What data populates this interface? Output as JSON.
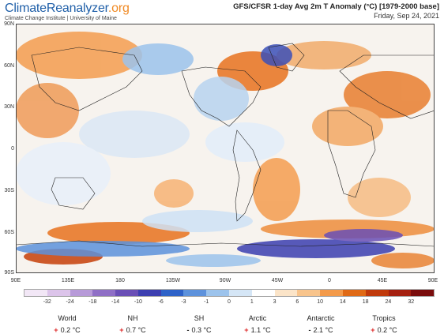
{
  "header": {
    "brand_main": "ClimateReanalyzer",
    "brand_ext": ".org",
    "brand_sub": "Climate Change Institute | University of Maine",
    "title": "GFS/CFSR 1-day Avg 2m T Anomaly (°C) [1979-2000 base]",
    "date": "Friday, Sep 24, 2021"
  },
  "map": {
    "lat_labels": [
      "90N",
      "60N",
      "30N",
      "0",
      "30S",
      "60S",
      "90S"
    ],
    "lon_labels": [
      "90E",
      "135E",
      "180",
      "135W",
      "90W",
      "45W",
      "0",
      "45E",
      "90E"
    ]
  },
  "colorbar": {
    "labels": [
      "-32",
      "-24",
      "-18",
      "-14",
      "-10",
      "-6",
      "-3",
      "-1",
      "0",
      "1",
      "3",
      "6",
      "10",
      "14",
      "18",
      "24",
      "32"
    ],
    "colors": [
      "#f2e7f6",
      "#dcc4ea",
      "#b79ad8",
      "#8f6fc6",
      "#6a4fb6",
      "#3c3fb0",
      "#2e62c8",
      "#5d92dc",
      "#9cc3ec",
      "#d5e6f6",
      "#ffffff",
      "#fbe4c8",
      "#f8c48c",
      "#f39a4a",
      "#e06a16",
      "#c03a0c",
      "#a52010",
      "#7a0c0c"
    ]
  },
  "stats": [
    {
      "name": "World",
      "sign": "+",
      "value": "0.2 °C"
    },
    {
      "name": "NH",
      "sign": "+",
      "value": "0.7 °C"
    },
    {
      "name": "SH",
      "sign": "-",
      "value": "0.3 °C"
    },
    {
      "name": "Arctic",
      "sign": "+",
      "value": "1.1 °C"
    },
    {
      "name": "Antarctic",
      "sign": "-",
      "value": "2.1 °C"
    },
    {
      "name": "Tropics",
      "sign": "+",
      "value": "0.2 °C"
    }
  ]
}
